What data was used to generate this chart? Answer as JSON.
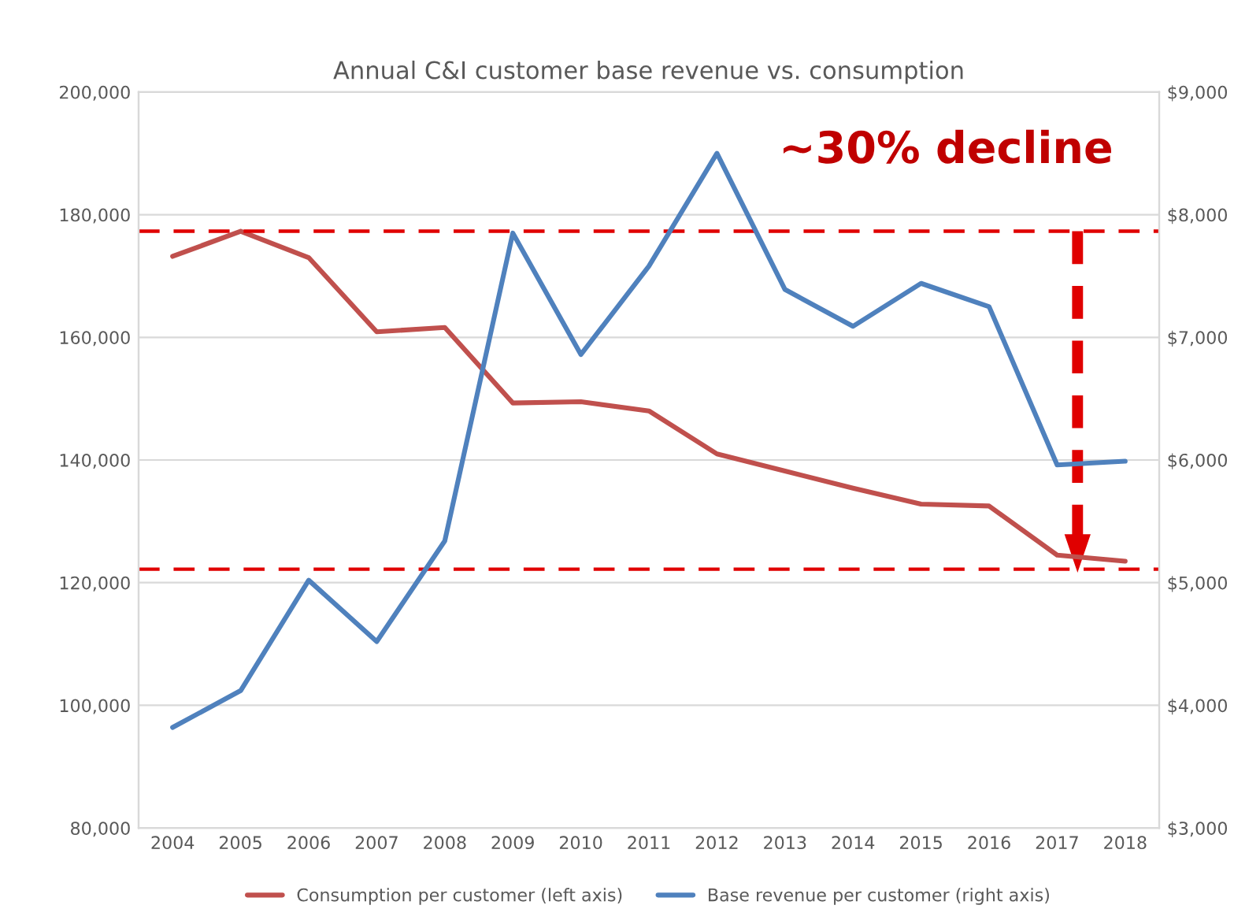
{
  "chart_data": {
    "type": "line",
    "title": "Annual C&I customer base revenue vs. consumption",
    "categories": [
      "2004",
      "2005",
      "2006",
      "2007",
      "2008",
      "2009",
      "2010",
      "2011",
      "2012",
      "2013",
      "2014",
      "2015",
      "2016",
      "2017",
      "2018"
    ],
    "series": [
      {
        "name": "Consumption per customer (left axis)",
        "color": "#c0504d",
        "values": [
          173200,
          177300,
          173000,
          160900,
          161600,
          149300,
          149500,
          148000,
          141000,
          138200,
          135400,
          132800,
          132500,
          124500,
          123500
        ]
      },
      {
        "name": "Base revenue per customer (right axis)",
        "color": "#4f81bd",
        "axis": "y2",
        "values": [
          3820,
          4120,
          5020,
          4520,
          5340,
          7850,
          6860,
          7580,
          8500,
          7390,
          7090,
          7440,
          7250,
          5960,
          5990
        ]
      }
    ],
    "ylim": [
      80000,
      200000
    ],
    "yticks": [
      {
        "value": 80000,
        "label": "80,000"
      },
      {
        "value": 100000,
        "label": "100,000"
      },
      {
        "value": 120000,
        "label": "120,000"
      },
      {
        "value": 140000,
        "label": "140,000"
      },
      {
        "value": 160000,
        "label": "160,000"
      },
      {
        "value": 180000,
        "label": "180,000"
      },
      {
        "value": 200000,
        "label": "200,000"
      }
    ],
    "y2lim": [
      3000,
      9000
    ],
    "y2ticks": [
      {
        "value": 3000,
        "label": "$3,000"
      },
      {
        "value": 4000,
        "label": "$4,000"
      },
      {
        "value": 5000,
        "label": "$5,000"
      },
      {
        "value": 6000,
        "label": "$6,000"
      },
      {
        "value": 7000,
        "label": "$7,000"
      },
      {
        "value": 8000,
        "label": "$8,000"
      },
      {
        "value": 9000,
        "label": "$9,000"
      }
    ],
    "ref_lines": [
      {
        "axis": "y",
        "value": 177300,
        "color": "#e00000",
        "line_style": "dashed"
      },
      {
        "axis": "y",
        "value": 122200,
        "color": "#e00000",
        "line_style": "dashed"
      }
    ],
    "annotations": [
      "~30% decline"
    ],
    "grid": "y",
    "legend": "bottom",
    "line_style": "solid",
    "marker": "none"
  }
}
